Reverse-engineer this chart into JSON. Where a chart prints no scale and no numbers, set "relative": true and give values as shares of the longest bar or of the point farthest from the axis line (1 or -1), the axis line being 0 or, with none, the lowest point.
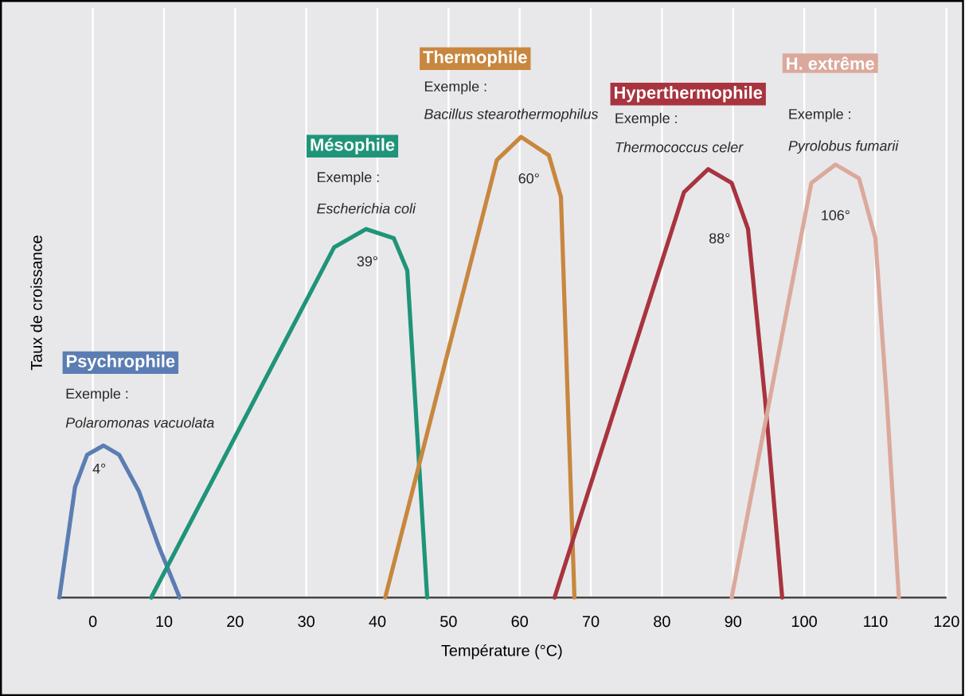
{
  "chart_data": {
    "type": "line",
    "relative": true,
    "xlabel": "Température (°C)",
    "ylabel": "Taux de croissance",
    "xlim": [
      -5,
      120
    ],
    "xticks": [
      0,
      10,
      20,
      30,
      40,
      50,
      60,
      70,
      80,
      90,
      100,
      110,
      120
    ],
    "grid": "x",
    "marker": "none",
    "series": [
      {
        "name": "Psychrophile",
        "color": "#5b7db3",
        "x": [
          -4.7,
          -2.5,
          -0.8,
          1.5,
          3.7,
          6.5,
          9.3,
          12.2
        ],
        "values": [
          0,
          0.24,
          0.31,
          0.33,
          0.31,
          0.23,
          0.11,
          0
        ]
      },
      {
        "name": "Mésophile",
        "color": "#1f9479",
        "x": [
          8.2,
          33.9,
          38.4,
          42.3,
          44.2,
          47
        ],
        "values": [
          0,
          0.76,
          0.8,
          0.78,
          0.71,
          0
        ]
      },
      {
        "name": "Thermophile",
        "color": "#c8873f",
        "x": [
          41.1,
          56.8,
          60.2,
          64.1,
          65.8,
          67.7
        ],
        "values": [
          0,
          0.95,
          1,
          0.96,
          0.87,
          0
        ]
      },
      {
        "name": "Hyperthermophile",
        "color": "#a8343f",
        "x": [
          64.9,
          83.1,
          86.5,
          89.8,
          92.1,
          94.5,
          96.9
        ],
        "values": [
          0,
          0.88,
          0.93,
          0.9,
          0.8,
          0.43,
          0
        ]
      },
      {
        "name": "H. extrême",
        "color": "#dba99c",
        "x": [
          89.8,
          101,
          104.4,
          107.7,
          110,
          111.6,
          113.3
        ],
        "values": [
          0,
          0.9,
          0.94,
          0.91,
          0.78,
          0.43,
          0
        ]
      }
    ],
    "annotations": [
      "Exemple :",
      "Polaromonas vacuolata",
      "4°",
      "Exemple :",
      "Escherichia coli",
      "39°",
      "Exemple :",
      "Bacillus stearothermophilus",
      "60°",
      "Exemple :",
      "Thermococcus celer",
      "88°",
      "Exemple :",
      "Pyrolobus fumarii",
      "106°"
    ]
  }
}
